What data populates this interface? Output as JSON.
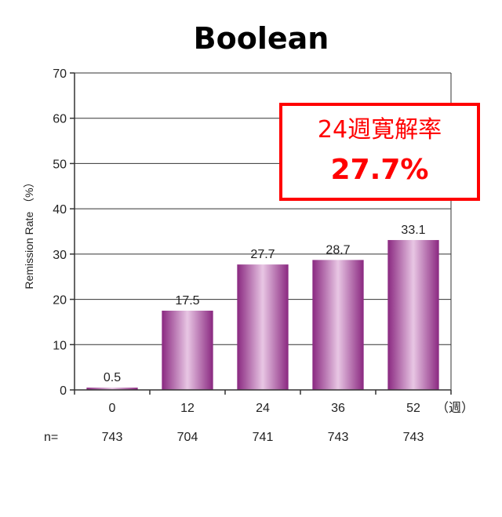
{
  "chart_data": {
    "type": "bar",
    "title": "Boolean",
    "ylabel": "Remission Rate （%）",
    "xunit": "（週）",
    "categories": [
      "0",
      "12",
      "24",
      "36",
      "52"
    ],
    "values": [
      0.5,
      17.5,
      27.7,
      28.7,
      33.1
    ],
    "value_labels": [
      "0.5",
      "17.5",
      "27.7",
      "28.7",
      "33.1"
    ],
    "yticks": [
      "0",
      "10",
      "20",
      "30",
      "40",
      "50",
      "60",
      "70"
    ],
    "ylim": [
      0,
      70
    ],
    "n_label": "n=",
    "n_values": [
      "743",
      "704",
      "741",
      "743",
      "743"
    ],
    "grid": true,
    "bar_color": "#9b2f8f",
    "callout": {
      "line1": "24週寛解率",
      "line2": "27.7%",
      "color": "#ff0000"
    }
  }
}
